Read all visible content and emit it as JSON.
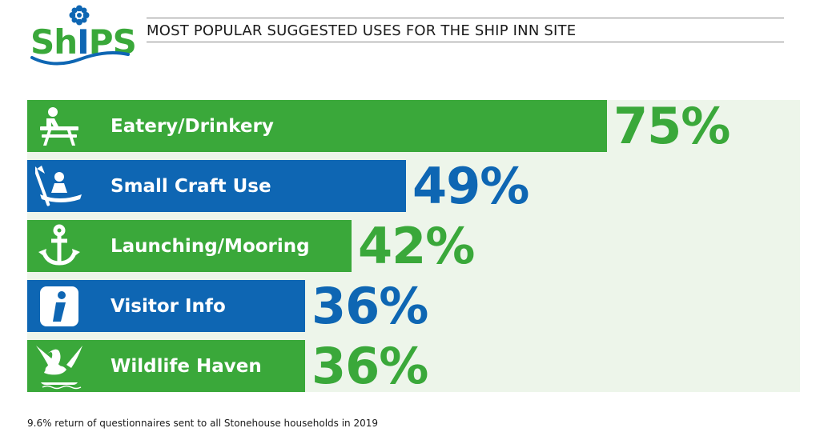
{
  "logo": {
    "text_prefix": "Sh",
    "text_i": "I",
    "text_suffix": "PS"
  },
  "title": "MOST POPULAR SUGGESTED USES FOR THE SHIP INN SITE",
  "colors": {
    "green": "#3aa83a",
    "blue": "#0e66b3",
    "background": "#edf5ea"
  },
  "chart_data": {
    "type": "bar",
    "orientation": "horizontal",
    "title": "MOST POPULAR SUGGESTED USES FOR THE SHIP INN SITE",
    "categories": [
      "Eatery/Drinkery",
      "Small Craft Use",
      "Launching/Mooring",
      "Visitor Info",
      "Wildlife Haven"
    ],
    "values": [
      75,
      49,
      42,
      36,
      36
    ],
    "value_labels": [
      "75%",
      "49%",
      "42%",
      "36%",
      "36%"
    ],
    "bar_colors": [
      "#3aa83a",
      "#0e66b3",
      "#3aa83a",
      "#0e66b3",
      "#3aa83a"
    ],
    "icons": [
      "picnic-table-icon",
      "kayak-icon",
      "anchor-icon",
      "info-icon",
      "swan-icon"
    ],
    "xlim": [
      0,
      100
    ],
    "unit": "%"
  },
  "footnote": "9.6% return of questionnaires sent to all Stonehouse households in 2019"
}
